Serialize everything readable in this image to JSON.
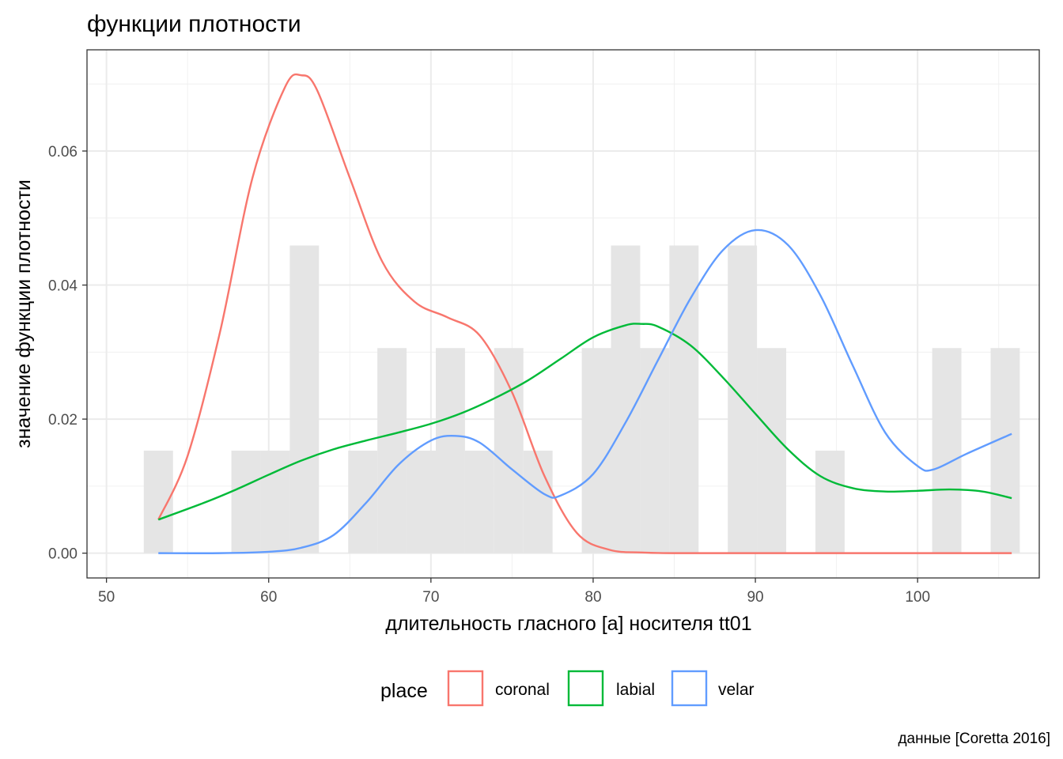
{
  "chart_data": {
    "type": "histogram+density",
    "title": "функции плотности",
    "xlabel": "длительность гласного [а] носителя tt01",
    "ylabel": "значение функции плотности",
    "caption": "данные [Coretta 2016]",
    "xlim": [
      48.8,
      107.5
    ],
    "ylim": [
      -0.0037,
      0.0751
    ],
    "x_ticks": [
      50,
      60,
      70,
      80,
      90,
      100
    ],
    "x_tick_labels": [
      "50",
      "60",
      "70",
      "80",
      "90",
      "100"
    ],
    "y_ticks": [
      0.0,
      0.02,
      0.04,
      0.06
    ],
    "y_tick_labels": [
      "0.00",
      "0.02",
      "0.04",
      "0.06"
    ],
    "grid": true,
    "legend": {
      "title": "place",
      "position": "bottom",
      "entries": [
        "coronal",
        "labial",
        "velar"
      ]
    },
    "histogram": {
      "fill": "#e5e5e5",
      "bins": [
        {
          "x0": 52.3,
          "x1": 54.1,
          "density": 0.0153
        },
        {
          "x0": 54.1,
          "x1": 55.9,
          "density": 0.0
        },
        {
          "x0": 55.9,
          "x1": 57.7,
          "density": 0.0
        },
        {
          "x0": 57.7,
          "x1": 59.5,
          "density": 0.0153
        },
        {
          "x0": 59.5,
          "x1": 61.3,
          "density": 0.0153
        },
        {
          "x0": 61.3,
          "x1": 63.1,
          "density": 0.0459
        },
        {
          "x0": 63.1,
          "x1": 64.9,
          "density": 0.0
        },
        {
          "x0": 64.9,
          "x1": 66.7,
          "density": 0.0153
        },
        {
          "x0": 66.7,
          "x1": 68.5,
          "density": 0.0306
        },
        {
          "x0": 68.5,
          "x1": 70.3,
          "density": 0.0153
        },
        {
          "x0": 70.3,
          "x1": 72.1,
          "density": 0.0306
        },
        {
          "x0": 72.1,
          "x1": 73.9,
          "density": 0.0153
        },
        {
          "x0": 73.9,
          "x1": 75.7,
          "density": 0.0306
        },
        {
          "x0": 75.7,
          "x1": 77.5,
          "density": 0.0153
        },
        {
          "x0": 77.5,
          "x1": 79.3,
          "density": 0.0
        },
        {
          "x0": 79.3,
          "x1": 81.1,
          "density": 0.0306
        },
        {
          "x0": 81.1,
          "x1": 82.9,
          "density": 0.0459
        },
        {
          "x0": 82.9,
          "x1": 84.7,
          "density": 0.0306
        },
        {
          "x0": 84.7,
          "x1": 86.5,
          "density": 0.0459
        },
        {
          "x0": 86.5,
          "x1": 88.3,
          "density": 0.0
        },
        {
          "x0": 88.3,
          "x1": 90.1,
          "density": 0.0459
        },
        {
          "x0": 90.1,
          "x1": 91.9,
          "density": 0.0306
        },
        {
          "x0": 91.9,
          "x1": 93.7,
          "density": 0.0
        },
        {
          "x0": 93.7,
          "x1": 95.5,
          "density": 0.0153
        },
        {
          "x0": 95.5,
          "x1": 97.3,
          "density": 0.0
        },
        {
          "x0": 97.3,
          "x1": 99.1,
          "density": 0.0
        },
        {
          "x0": 99.1,
          "x1": 100.9,
          "density": 0.0
        },
        {
          "x0": 100.9,
          "x1": 102.7,
          "density": 0.0306
        },
        {
          "x0": 102.7,
          "x1": 104.5,
          "density": 0.0
        },
        {
          "x0": 104.5,
          "x1": 106.3,
          "density": 0.0306
        }
      ]
    },
    "series": [
      {
        "name": "coronal",
        "color": "#f8766d",
        "x": [
          53.2,
          55,
          57,
          59,
          61,
          62,
          63,
          65,
          67,
          69,
          71,
          73,
          75,
          77,
          79,
          81,
          83,
          85,
          90,
          100,
          105.8
        ],
        "y": [
          0.005,
          0.0145,
          0.033,
          0.056,
          0.0695,
          0.0713,
          0.069,
          0.056,
          0.0435,
          0.0375,
          0.0352,
          0.0325,
          0.024,
          0.0115,
          0.003,
          0.0005,
          0.0001,
          0.0,
          0.0,
          0.0,
          0.0
        ]
      },
      {
        "name": "labial",
        "color": "#00ba38",
        "x": [
          53.2,
          56,
          58,
          60,
          62,
          64,
          66,
          68,
          70,
          72,
          74,
          76,
          78,
          80,
          82,
          83,
          84,
          86,
          88,
          90,
          92,
          94,
          96,
          98,
          100,
          102,
          104,
          105.8
        ],
        "y": [
          0.005,
          0.0075,
          0.0095,
          0.0117,
          0.0138,
          0.0155,
          0.0168,
          0.018,
          0.0193,
          0.021,
          0.0232,
          0.0258,
          0.029,
          0.0322,
          0.034,
          0.0342,
          0.0338,
          0.031,
          0.0262,
          0.0208,
          0.0155,
          0.0115,
          0.0097,
          0.0092,
          0.0093,
          0.0095,
          0.0092,
          0.0082
        ]
      },
      {
        "name": "velar",
        "color": "#619cff",
        "x": [
          53.2,
          57,
          60,
          62,
          64,
          66,
          68,
          70,
          71.5,
          73,
          75,
          77,
          78,
          80,
          82,
          84,
          86,
          88,
          90,
          92,
          94,
          96,
          98,
          100,
          101,
          103,
          105.8
        ],
        "y": [
          0.0,
          0.0,
          0.0002,
          0.0008,
          0.0027,
          0.0075,
          0.0132,
          0.0168,
          0.0175,
          0.0165,
          0.0125,
          0.0088,
          0.0086,
          0.0118,
          0.0195,
          0.0288,
          0.038,
          0.0452,
          0.0482,
          0.046,
          0.0385,
          0.028,
          0.018,
          0.013,
          0.0125,
          0.0148,
          0.0178
        ]
      }
    ]
  }
}
